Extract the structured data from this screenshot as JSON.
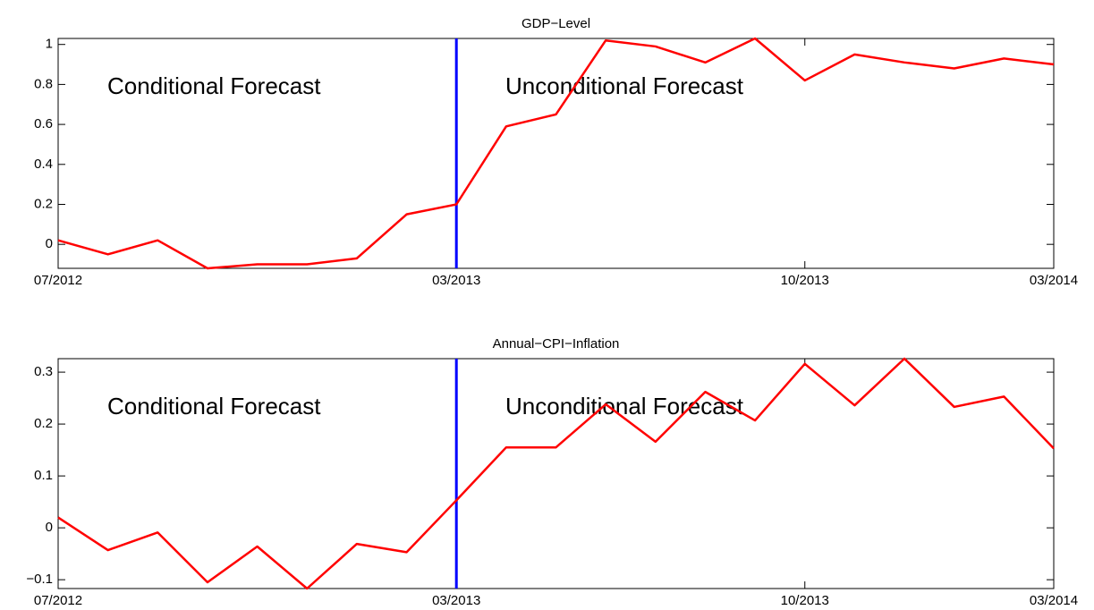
{
  "chart_data": [
    {
      "type": "line",
      "title": "GDP−Level",
      "categories": [
        "07/2012",
        null,
        null,
        null,
        null,
        null,
        null,
        null,
        "03/2013",
        null,
        null,
        null,
        null,
        null,
        null,
        "10/2013",
        null,
        null,
        null,
        null,
        "03/2014"
      ],
      "values": [
        0.02,
        -0.05,
        0.02,
        -0.12,
        -0.1,
        -0.1,
        -0.07,
        0.15,
        0.2,
        0.59,
        0.65,
        1.02,
        0.99,
        0.91,
        1.03,
        0.82,
        0.95,
        0.91,
        0.88,
        0.93,
        0.9
      ],
      "color": "#ff0000",
      "ylim": [
        -0.12,
        1.03
      ],
      "yticks": [
        0,
        0.2,
        0.4,
        0.6,
        0.8,
        1
      ],
      "divider": {
        "at": "03/2013",
        "color": "#0000ff"
      },
      "annotations": [
        "Conditional Forecast",
        "Unconditional Forecast"
      ]
    },
    {
      "type": "line",
      "title": "Annual−CPI−Inflation",
      "categories": [
        "07/2012",
        null,
        null,
        null,
        null,
        null,
        null,
        null,
        "03/2013",
        null,
        null,
        null,
        null,
        null,
        null,
        "10/2013",
        null,
        null,
        null,
        null,
        "03/2014"
      ],
      "values": [
        0.02,
        -0.043,
        -0.009,
        -0.105,
        -0.036,
        -0.117,
        -0.031,
        -0.047,
        0.053,
        0.155,
        0.155,
        0.238,
        0.166,
        0.262,
        0.207,
        0.316,
        0.236,
        0.326,
        0.233,
        0.253,
        0.153
      ],
      "color": "#ff0000",
      "ylim": [
        -0.117,
        0.326
      ],
      "yticks": [
        {
          "value": -0.1,
          "label": "−0.1"
        },
        0,
        0.1,
        0.2,
        0.3
      ],
      "divider": {
        "at": "03/2013",
        "color": "#0000ff"
      },
      "annotations": [
        "Conditional Forecast",
        "Unconditional Forecast"
      ]
    }
  ]
}
